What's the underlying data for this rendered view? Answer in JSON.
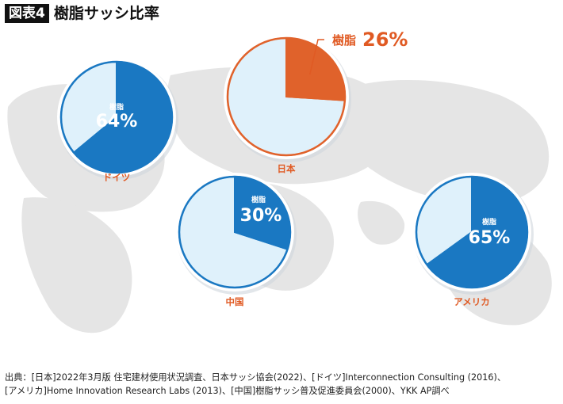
{
  "header": {
    "figure_tag": "図表4",
    "title": "樹脂サッシ比率"
  },
  "colors": {
    "resin": "#1a78c2",
    "resin_japan": "#e0622b",
    "other": "#dff1fb",
    "ring": "#ffffff",
    "label": "#e05a23",
    "map": "#e5e5e5"
  },
  "chart_data": [
    {
      "type": "pie",
      "country": "ドイツ",
      "slices": [
        {
          "label": "樹脂",
          "value": 64
        },
        {
          "label": "",
          "value": 36
        }
      ],
      "value_label": "64%",
      "slice_label": "樹脂"
    },
    {
      "type": "pie",
      "country": "日本",
      "slices": [
        {
          "label": "樹脂",
          "value": 26
        },
        {
          "label": "",
          "value": 74
        }
      ],
      "value_label": "26%",
      "slice_label": "樹脂"
    },
    {
      "type": "pie",
      "country": "中国",
      "slices": [
        {
          "label": "樹脂",
          "value": 30
        },
        {
          "label": "",
          "value": 70
        }
      ],
      "value_label": "30%",
      "slice_label": "樹脂"
    },
    {
      "type": "pie",
      "country": "アメリカ",
      "slices": [
        {
          "label": "樹脂",
          "value": 65
        },
        {
          "label": "",
          "value": 35
        }
      ],
      "value_label": "65%",
      "slice_label": "樹脂"
    }
  ],
  "source": {
    "line1": "出典：[日本]2022年3月版 住宅建材使用状況調査、日本サッシ協会(2022)、[ドイツ]Interconnection Consulting (2016)、",
    "line2": "[アメリカ]Home Innovation Research Labs (2013)、[中国]樹脂サッシ普及促進委員会(2000)、YKK AP調べ"
  }
}
